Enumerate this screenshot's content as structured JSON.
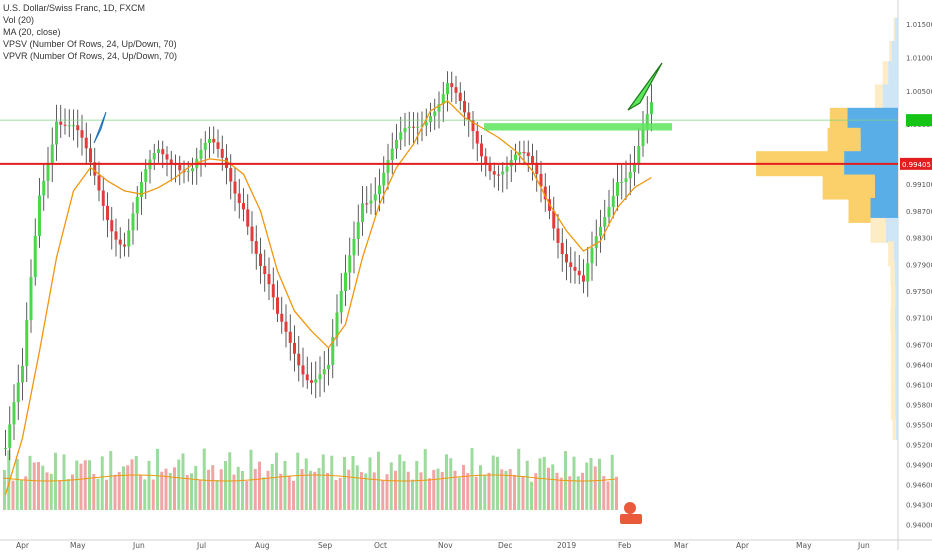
{
  "legend": {
    "symbol": "U.S. Dollar/Swiss Franc, 1D, FXCM",
    "vol": "Vol (20)",
    "ma": "MA (20, close)",
    "vpsv": "VPSV (Number Of Rows, 24, Up/Down, 70)",
    "vpvr": "VPVR (Number Of Rows, 24, Up/Down, 70)"
  },
  "colors": {
    "up": "#4cd64c",
    "down": "#e23b3b",
    "ma": "#f0960f",
    "support": "#e31e1e",
    "zone": "#5ce65c",
    "vp_up": "#5aaee8",
    "vp_down": "#fbcf6a"
  },
  "chart_data": {
    "type": "candlestick",
    "x_axis_labels": [
      "Apr",
      "May",
      "Jun",
      "Jul",
      "Aug",
      "Sep",
      "Oct",
      "Nov",
      "Dec",
      "2019",
      "Feb",
      "Mar",
      "Apr",
      "May",
      "Jun"
    ],
    "y_axis_labels": [
      "1.01500",
      "1.01000",
      "1.00500",
      "1.00000",
      "0.99400",
      "0.99100",
      "0.98700",
      "0.98300",
      "0.97900",
      "0.97500",
      "0.97100",
      "0.96700",
      "0.96400",
      "0.96100",
      "0.95800",
      "0.95500",
      "0.95200",
      "0.94900",
      "0.94600",
      "0.94300",
      "0.94000"
    ],
    "last_price": "0.99405",
    "ylim": [
      0.9395,
      1.0165
    ],
    "price_series": {
      "name": "USDCHF",
      "dates": [
        "2018-04-02",
        "2018-04-12",
        "2018-04-24",
        "2018-05-04",
        "2018-05-14",
        "2018-05-22",
        "2018-05-29",
        "2018-06-06",
        "2018-06-14",
        "2018-06-22",
        "2018-07-02",
        "2018-07-10",
        "2018-07-18",
        "2018-07-26",
        "2018-08-03",
        "2018-08-10",
        "2018-08-17",
        "2018-08-24",
        "2018-08-31",
        "2018-09-07",
        "2018-09-14",
        "2018-09-21",
        "2018-09-28",
        "2018-10-08",
        "2018-10-17",
        "2018-10-26",
        "2018-11-05",
        "2018-11-13",
        "2018-11-21",
        "2018-11-29",
        "2018-12-07",
        "2018-12-14",
        "2018-12-21",
        "2018-12-28",
        "2019-01-04",
        "2019-01-10",
        "2019-01-18",
        "2019-01-25",
        "2019-02-01"
      ],
      "close": [
        0.9515,
        0.961,
        0.99,
        1.003,
        0.9985,
        0.992,
        0.9875,
        0.9835,
        0.989,
        0.995,
        0.9965,
        0.994,
        0.995,
        0.9935,
        0.99,
        0.978,
        0.969,
        0.967,
        0.9635,
        0.962,
        0.976,
        0.9905,
        0.992,
        0.995,
        0.999,
        1.004,
        1.006,
        0.999,
        0.996,
        0.995,
        0.994,
        0.992,
        0.989,
        0.981,
        0.974,
        0.9835,
        0.994,
        0.9945,
        1.0005
      ]
    },
    "ma_series": {
      "name": "MA (20, close)",
      "values": [
        0.9445,
        0.953,
        0.966,
        0.98,
        0.99,
        0.9935,
        0.9915,
        0.99,
        0.9895,
        0.9905,
        0.992,
        0.994,
        0.9948,
        0.9945,
        0.9925,
        0.987,
        0.978,
        0.972,
        0.969,
        0.9665,
        0.97,
        0.98,
        0.988,
        0.9935,
        0.997,
        1.002,
        1.0035,
        1.001,
        0.9995,
        0.998,
        0.996,
        0.993,
        0.988,
        0.984,
        0.981,
        0.9825,
        0.9875,
        0.9905,
        0.992
      ]
    },
    "horizontal_levels": [
      0.99405,
      1.0006
    ],
    "resistance_zone": [
      0.99905,
      1.00015
    ],
    "volume_profile": {
      "type": "bar",
      "prices": [
        1.014,
        1.0105,
        1.0075,
        1.004,
        1.0005,
        0.9975,
        0.994,
        0.9905,
        0.987,
        0.984,
        0.9805,
        0.9775,
        0.974,
        0.9705,
        0.9675,
        0.964,
        0.961,
        0.9575,
        0.9545
      ],
      "up": [
        6,
        12,
        18,
        28,
        92,
        68,
        98,
        42,
        50,
        22,
        8,
        6,
        5,
        6,
        5,
        5,
        5,
        5,
        4
      ],
      "down": [
        2,
        4,
        10,
        14,
        32,
        60,
        160,
        95,
        40,
        28,
        10,
        8,
        8,
        8,
        8,
        8,
        8,
        8,
        6
      ]
    }
  }
}
